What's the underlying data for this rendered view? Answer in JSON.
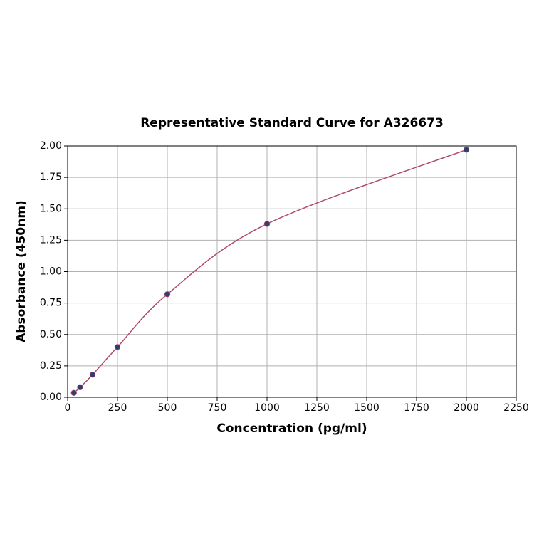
{
  "chart_data": {
    "type": "scatter",
    "title": "Representative Standard Curve for A326673",
    "xlabel": "Concentration (pg/ml)",
    "ylabel": "Absorbance (450nm)",
    "x": [
      31.25,
      62.5,
      125,
      250,
      500,
      1000,
      2000
    ],
    "values": [
      0.035,
      0.08,
      0.18,
      0.4,
      0.82,
      1.38,
      1.97
    ],
    "color": "#2e3f73",
    "line_color": "#b04a6c",
    "xlim": [
      0,
      2250
    ],
    "ylim": [
      0,
      2
    ],
    "xticks": [
      0,
      250,
      500,
      750,
      1000,
      1250,
      1500,
      1750,
      2000,
      2250
    ],
    "yticks": [
      {
        "value": 0,
        "label": "0.00"
      },
      {
        "value": 0.25,
        "label": "0.25"
      },
      {
        "value": 0.5,
        "label": "0.50"
      },
      {
        "value": 0.75,
        "label": "0.75"
      },
      {
        "value": 1,
        "label": "1.00"
      },
      {
        "value": 1.25,
        "label": "1.25"
      },
      {
        "value": 1.5,
        "label": "1.50"
      },
      {
        "value": 1.75,
        "label": "1.75"
      },
      {
        "value": 2,
        "label": "2.00"
      }
    ],
    "grid": true
  }
}
